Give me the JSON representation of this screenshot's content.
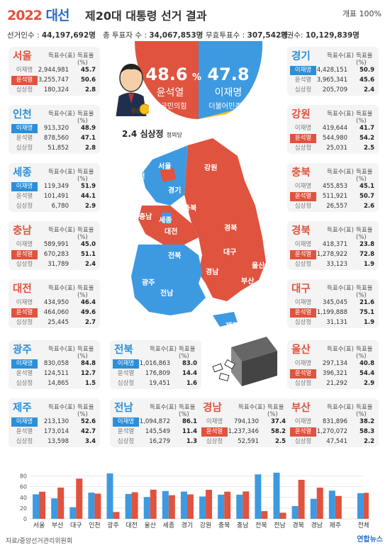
{
  "header": {
    "year": "2022",
    "title_word": "대선",
    "title_rest": "제20대 대통령 선거 결과",
    "count_rate": "개표 100%"
  },
  "stats": [
    {
      "label": "선거인수 : ",
      "value": "44,197,692명"
    },
    {
      "label": "총 투표자 수 : ",
      "value": "34,067,853명"
    },
    {
      "label": "무효투표수 : ",
      "value": "307,542명"
    },
    {
      "label": "기권수: ",
      "value": "10,129,839명"
    }
  ],
  "national": {
    "yoon_pct": "48.6",
    "yoon_pct_unit": "%",
    "yoon_name": "윤석열",
    "yoon_party": "국민의힘",
    "lee_pct": "47.8",
    "lee_name": "이재명",
    "lee_party": "더불어민주당",
    "sim_pct": "2.4",
    "sim_name": "심상정",
    "sim_party": "정의당",
    "winner_badge": "당선",
    "colors": {
      "yoon": "#e0533e",
      "lee": "#3d9ae0",
      "sim": "#f2c21a"
    }
  },
  "card_headers": {
    "votes": "득표수(표)",
    "pct": "득표율(%)"
  },
  "candidates": [
    "이재명",
    "윤석열",
    "심상정"
  ],
  "regions": [
    {
      "name": "서울",
      "winner": "yoon",
      "votes": [
        "2,944,981",
        "3,255,747",
        "180,324"
      ],
      "pct": [
        "45.7",
        "50.6",
        "2.8"
      ]
    },
    {
      "name": "인천",
      "winner": "lee",
      "votes": [
        "913,320",
        "878,560",
        "51,852"
      ],
      "pct": [
        "48.9",
        "47.1",
        "2.8"
      ]
    },
    {
      "name": "세종",
      "winner": "lee",
      "votes": [
        "119,349",
        "101,491",
        "6,780"
      ],
      "pct": [
        "51.9",
        "44.1",
        "2.9"
      ]
    },
    {
      "name": "충남",
      "winner": "yoon",
      "votes": [
        "589,991",
        "670,283",
        "31,789"
      ],
      "pct": [
        "45.0",
        "51.1",
        "2.4"
      ]
    },
    {
      "name": "대전",
      "winner": "yoon",
      "votes": [
        "434,950",
        "464,060",
        "25,445"
      ],
      "pct": [
        "46.4",
        "49.6",
        "2.7"
      ]
    },
    {
      "name": "광주",
      "winner": "lee",
      "votes": [
        "830,058",
        "124,511",
        "14,865"
      ],
      "pct": [
        "84.8",
        "12.7",
        "1.5"
      ]
    },
    {
      "name": "제주",
      "winner": "lee",
      "votes": [
        "213,130",
        "173,014",
        "13,598"
      ],
      "pct": [
        "52.6",
        "42.7",
        "3.4"
      ]
    },
    {
      "name": "전북",
      "winner": "lee",
      "votes": [
        "1,016,863",
        "176,809",
        "19,451"
      ],
      "pct": [
        "83.0",
        "14.4",
        "1.6"
      ]
    },
    {
      "name": "전남",
      "winner": "lee",
      "votes": [
        "1,094,872",
        "145,549",
        "16,279"
      ],
      "pct": [
        "86.1",
        "11.4",
        "1.3"
      ]
    },
    {
      "name": "경남",
      "winner": "yoon",
      "votes": [
        "794,130",
        "1,237,346",
        "52,591"
      ],
      "pct": [
        "37.4",
        "58.2",
        "2.5"
      ]
    },
    {
      "name": "경기",
      "winner": "lee",
      "votes": [
        "4,428,151",
        "3,965,341",
        "205,709"
      ],
      "pct": [
        "50.9",
        "45.6",
        "2.4"
      ]
    },
    {
      "name": "강원",
      "winner": "yoon",
      "votes": [
        "419,644",
        "544,980",
        "25,031"
      ],
      "pct": [
        "41.7",
        "54.2",
        "2.5"
      ]
    },
    {
      "name": "충북",
      "winner": "yoon",
      "votes": [
        "455,853",
        "511,921",
        "26,557"
      ],
      "pct": [
        "45.1",
        "50.7",
        "2.6"
      ]
    },
    {
      "name": "경북",
      "winner": "yoon",
      "votes": [
        "418,371",
        "1,278,922",
        "33,123"
      ],
      "pct": [
        "23.8",
        "72.8",
        "1.9"
      ]
    },
    {
      "name": "대구",
      "winner": "yoon",
      "votes": [
        "345,045",
        "1,199,888",
        "31,131"
      ],
      "pct": [
        "21.6",
        "75.1",
        "1.9"
      ]
    },
    {
      "name": "울산",
      "winner": "yoon",
      "votes": [
        "297,134",
        "396,321",
        "21,292"
      ],
      "pct": [
        "40.8",
        "54.4",
        "2.9"
      ]
    },
    {
      "name": "부산",
      "winner": "yoon",
      "votes": [
        "831,896",
        "1,270,072",
        "47,541"
      ],
      "pct": [
        "38.2",
        "58.3",
        "2.2"
      ]
    }
  ],
  "map_labels": [
    "서울",
    "인천",
    "경기",
    "강원",
    "충남",
    "세종",
    "충북",
    "대전",
    "경북",
    "전북",
    "대구",
    "울산",
    "광주",
    "경남",
    "부산",
    "전남",
    "제주"
  ],
  "chart_data": {
    "type": "bar",
    "categories": [
      "서울",
      "부산",
      "대구",
      "인천",
      "광주",
      "대전",
      "울산",
      "세종",
      "경기",
      "강원",
      "충북",
      "충남",
      "전북",
      "전남",
      "경북",
      "경남",
      "제주",
      "전체"
    ],
    "series": [
      {
        "values": [
          45.7,
          38.2,
          21.6,
          48.9,
          84.8,
          46.4,
          40.8,
          51.9,
          50.9,
          41.7,
          45.1,
          45.0,
          83.0,
          86.1,
          23.8,
          37.4,
          52.6,
          47.8
        ],
        "color": "#3d9ae0"
      },
      {
        "values": [
          50.6,
          58.3,
          75.1,
          47.1,
          12.7,
          49.6,
          54.4,
          44.1,
          45.6,
          54.2,
          50.7,
          51.1,
          14.4,
          11.4,
          72.8,
          58.2,
          42.7,
          48.6
        ],
        "color": "#e0533e"
      }
    ],
    "yticks": [
      0,
      20,
      40,
      60,
      80
    ],
    "ylim": [
      0,
      90
    ],
    "grid": true
  },
  "footer": {
    "source": "자료/중앙선거관리위원회",
    "brand": "연합뉴스"
  }
}
